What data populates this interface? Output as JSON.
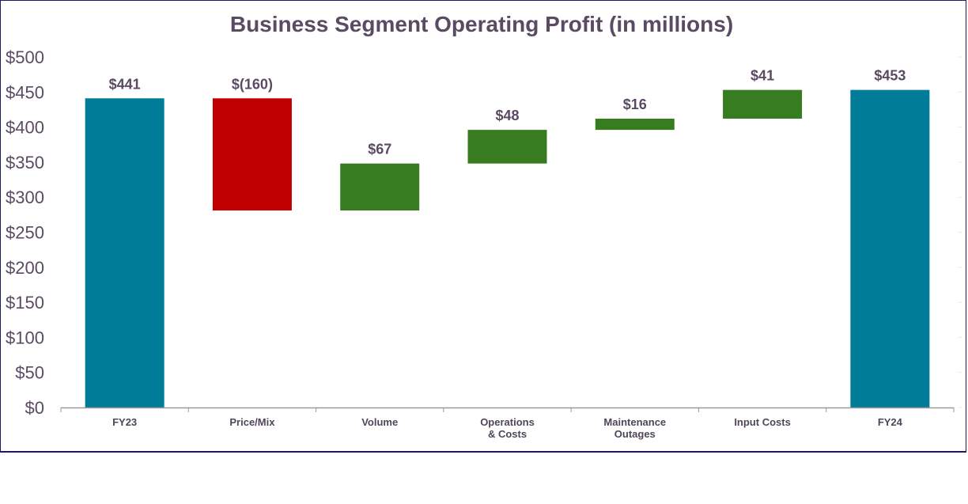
{
  "chart_data": {
    "type": "waterfall",
    "title": "Business Segment Operating Profit (in millions)",
    "xlabel": "",
    "ylabel": "",
    "ylim": [
      0,
      500
    ],
    "yticks": [
      0,
      50,
      100,
      150,
      200,
      250,
      300,
      350,
      400,
      450,
      500
    ],
    "ytick_labels": [
      "$0",
      "$50",
      "$100",
      "$150",
      "$200",
      "$250",
      "$300",
      "$350",
      "$400",
      "$450",
      "$500"
    ],
    "grid": false,
    "legend": "none",
    "categories": [
      [
        "FY23"
      ],
      [
        "Price/Mix"
      ],
      [
        "Volume"
      ],
      [
        "Operations",
        "& Costs"
      ],
      [
        "Maintenance",
        "Outages"
      ],
      [
        "Input Costs"
      ],
      [
        "FY24"
      ]
    ],
    "bars": [
      {
        "kind": "total",
        "start": 0,
        "end": 441,
        "label": "$441"
      },
      {
        "kind": "decrease",
        "start": 441,
        "end": 281,
        "label": "$(160)"
      },
      {
        "kind": "increase",
        "start": 281,
        "end": 348,
        "label": "$67"
      },
      {
        "kind": "increase",
        "start": 348,
        "end": 396,
        "label": "$48"
      },
      {
        "kind": "increase",
        "start": 396,
        "end": 412,
        "label": "$16"
      },
      {
        "kind": "increase",
        "start": 412,
        "end": 453,
        "label": "$41"
      },
      {
        "kind": "total",
        "start": 0,
        "end": 453,
        "label": "$453"
      }
    ],
    "colors": {
      "total": "#007c99",
      "decrease": "#c00000",
      "increase": "#387c22"
    }
  }
}
